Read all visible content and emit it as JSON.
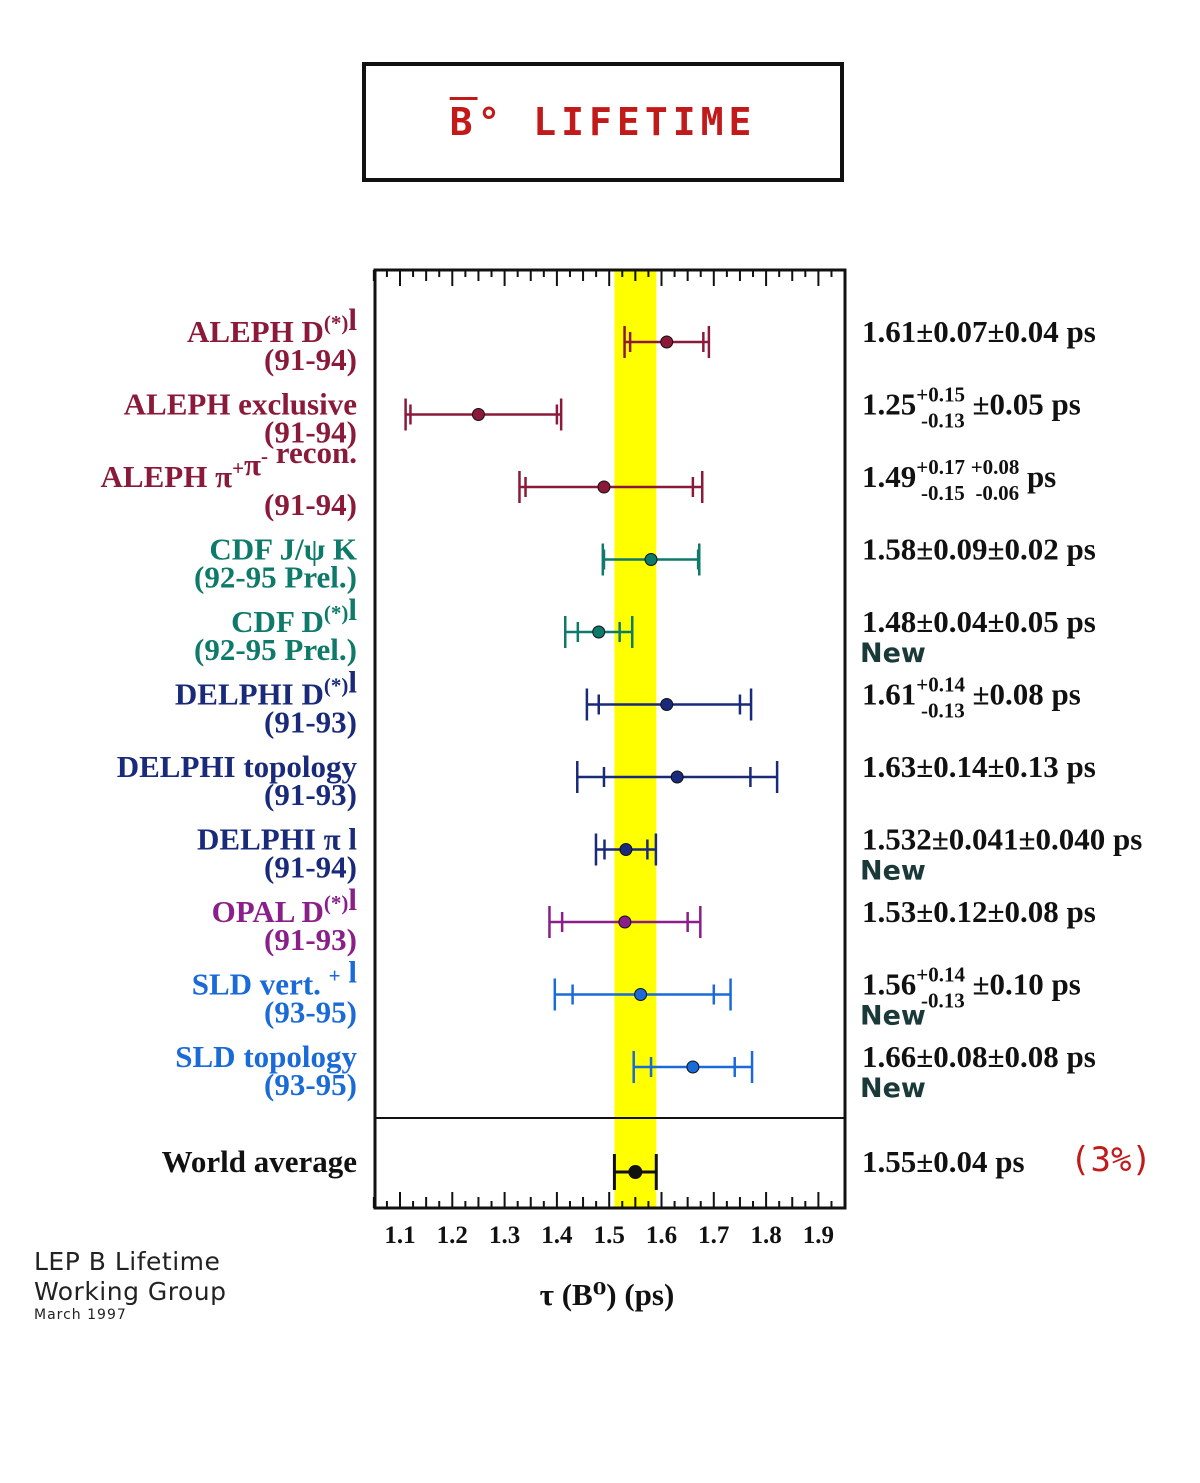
{
  "title": "B̅° LIFETIME",
  "chart_data": {
    "type": "scatter",
    "subtype": "error-bar-comparison",
    "xlabel": "τ (B⁰) (ps)",
    "xlim": [
      1.05,
      1.95
    ],
    "xticks": [
      "1.1",
      "1.2",
      "1.3",
      "1.4",
      "1.5",
      "1.6",
      "1.7",
      "1.8",
      "1.9"
    ],
    "xtick_values": [
      1.1,
      1.2,
      1.3,
      1.4,
      1.5,
      1.6,
      1.7,
      1.8,
      1.9
    ],
    "band": {
      "low": 1.51,
      "high": 1.59,
      "color": "#ffff00"
    },
    "measurements": [
      {
        "name": "ALEPH D(*)l",
        "period": "(91-94)",
        "color": "#8b1a3a",
        "value": 1.61,
        "stat": [
          0.07,
          0.07
        ],
        "syst": [
          0.04,
          0.04
        ],
        "result": "1.61±0.07±0.04 ps",
        "new": false
      },
      {
        "name": "ALEPH exclusive",
        "period": "(91-94)",
        "color": "#8b1a3a",
        "value": 1.25,
        "stat": [
          0.15,
          0.13
        ],
        "syst": [
          0.05,
          0.05
        ],
        "result": "1.25 +0.15 -0.13 ±0.05 ps",
        "new": false
      },
      {
        "name": "ALEPH π+π- recon.",
        "period": "(91-94)",
        "color": "#8b1a3a",
        "value": 1.49,
        "stat": [
          0.17,
          0.15
        ],
        "syst": [
          0.08,
          0.06
        ],
        "result": "1.49 +0.17 -0.15 +0.08 -0.06 ps",
        "new": false
      },
      {
        "name": "CDF J/ψ K",
        "period": "(92-95 Prel.)",
        "color": "#0e7a6a",
        "value": 1.58,
        "stat": [
          0.09,
          0.09
        ],
        "syst": [
          0.02,
          0.02
        ],
        "result": "1.58±0.09±0.02 ps",
        "new": false
      },
      {
        "name": "CDF D(*)l",
        "period": "(92-95 Prel.)",
        "color": "#0e7a6a",
        "value": 1.48,
        "stat": [
          0.04,
          0.04
        ],
        "syst": [
          0.05,
          0.05
        ],
        "result": "1.48±0.04±0.05 ps",
        "new": true
      },
      {
        "name": "DELPHI D(*)l",
        "period": "(91-93)",
        "color": "#1a2a7a",
        "value": 1.61,
        "stat": [
          0.14,
          0.13
        ],
        "syst": [
          0.08,
          0.08
        ],
        "result": "1.61 +0.14 -0.13 ±0.08 ps",
        "new": false
      },
      {
        "name": "DELPHI topology",
        "period": "(91-93)",
        "color": "#1a2a7a",
        "value": 1.63,
        "stat": [
          0.14,
          0.14
        ],
        "syst": [
          0.13,
          0.13
        ],
        "result": "1.63±0.14±0.13 ps",
        "new": false
      },
      {
        "name": "DELPHI π l",
        "period": "(91-94)",
        "color": "#1a2a7a",
        "value": 1.532,
        "stat": [
          0.041,
          0.041
        ],
        "syst": [
          0.04,
          0.04
        ],
        "result": "1.532±0.041±0.040 ps",
        "new": true
      },
      {
        "name": "OPAL D(*)l",
        "period": "(91-93)",
        "color": "#8a1f8a",
        "value": 1.53,
        "stat": [
          0.12,
          0.12
        ],
        "syst": [
          0.08,
          0.08
        ],
        "result": "1.53±0.12±0.08 ps",
        "new": false
      },
      {
        "name": "SLD vert. + l",
        "period": "(93-95)",
        "color": "#1a6ad8",
        "value": 1.56,
        "stat": [
          0.14,
          0.13
        ],
        "syst": [
          0.1,
          0.1
        ],
        "result": "1.56 +0.14 -0.13 ±0.10 ps",
        "new": true
      },
      {
        "name": "SLD topology",
        "period": "(93-95)",
        "color": "#1a6ad8",
        "value": 1.66,
        "stat": [
          0.08,
          0.08
        ],
        "syst": [
          0.08,
          0.08
        ],
        "result": "1.66±0.08±0.08 ps",
        "new": true
      }
    ],
    "average": {
      "name": "World average",
      "value": 1.55,
      "err": 0.04,
      "result": "1.55±0.04 ps",
      "note": "(3%)"
    }
  },
  "labels": {
    "new": "New"
  },
  "credit": {
    "line1": "LEP B Lifetime",
    "line2": "Working Group",
    "line3": "March 1997"
  }
}
